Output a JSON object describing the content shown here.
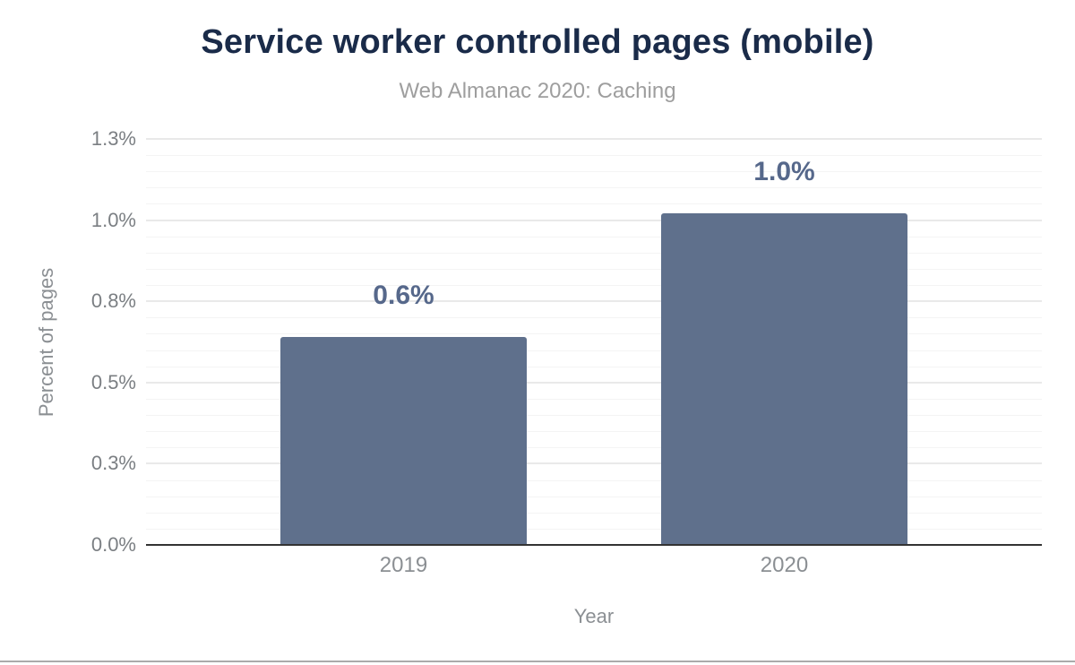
{
  "chart_data": {
    "type": "bar",
    "title": "Service worker controlled pages (mobile)",
    "subtitle": "Web Almanac 2020: Caching",
    "xlabel": "Year",
    "ylabel": "Percent of pages",
    "categories": [
      "2019",
      "2020"
    ],
    "values": [
      0.64,
      1.02
    ],
    "bar_labels": [
      "0.6%",
      "1.0%"
    ],
    "ylim": [
      0,
      1.25
    ],
    "y_ticks": [
      {
        "value": 0,
        "label": "0.0%"
      },
      {
        "value": 0.25,
        "label": "0.3%"
      },
      {
        "value": 0.5,
        "label": "0.5%"
      },
      {
        "value": 0.75,
        "label": "0.8%"
      },
      {
        "value": 1,
        "label": "1.0%"
      },
      {
        "value": 1.25,
        "label": "1.3%"
      }
    ],
    "y_minor_step": 0.05,
    "y_major_step": 0.25,
    "grid": "on",
    "legend": "none",
    "bar_width_fraction": 0.275
  },
  "colors": {
    "background": "#ffffff",
    "title": "#1a2b49",
    "subtitle": "#9e9e9e",
    "bar": "#5f708c",
    "bar_label": "#56688b",
    "axis_line": "#333333",
    "y_tick_label": "#7b7f83",
    "x_tick_label": "#8b8f93",
    "grid_major": "#e9e9e9",
    "grid_minor": "#f4f4f4",
    "bottom_rule": "#ababab"
  }
}
